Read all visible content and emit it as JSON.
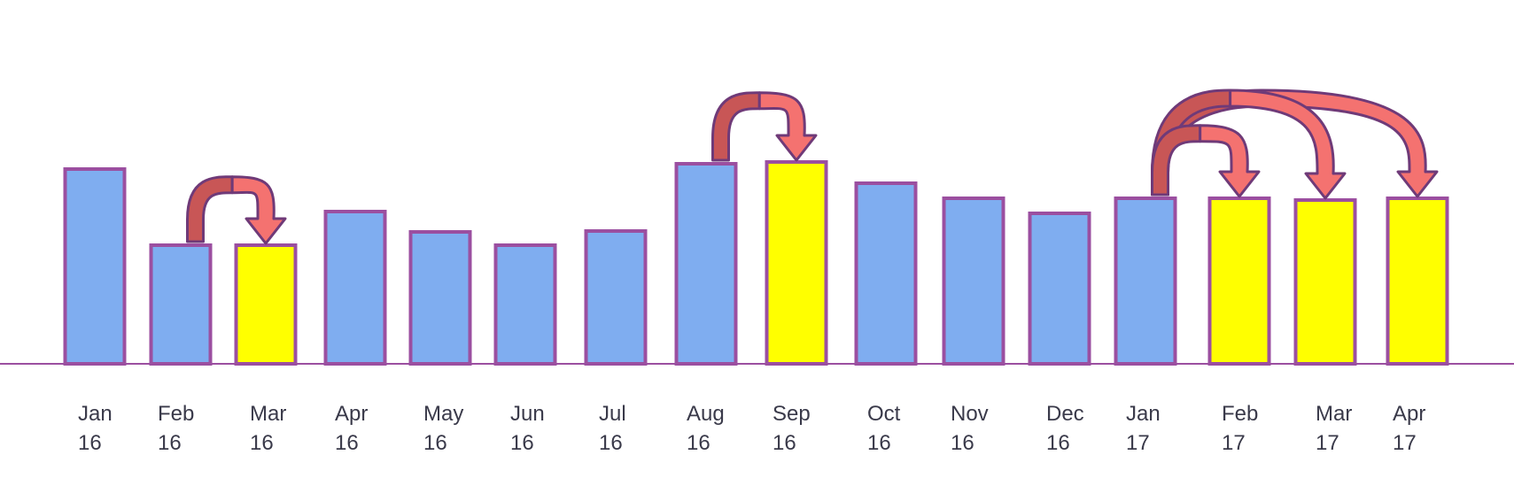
{
  "chart_data": {
    "type": "bar",
    "categories": [
      [
        "Jan",
        "16"
      ],
      [
        "Feb",
        "16"
      ],
      [
        "Mar",
        "16"
      ],
      [
        "Apr",
        "16"
      ],
      [
        "May",
        "16"
      ],
      [
        "Jun",
        "16"
      ],
      [
        "Jul",
        "16"
      ],
      [
        "Aug",
        "16"
      ],
      [
        "Sep",
        "16"
      ],
      [
        "Oct",
        "16"
      ],
      [
        "Nov",
        "16"
      ],
      [
        "Dec",
        "16"
      ],
      [
        "Jan",
        "17"
      ],
      [
        "Feb",
        "17"
      ],
      [
        "Mar",
        "17"
      ],
      [
        "Apr",
        "17"
      ]
    ],
    "values": [
      220,
      134,
      134,
      172,
      149,
      134,
      150,
      226,
      228,
      204,
      187,
      170,
      187,
      187,
      185,
      187
    ],
    "highlighted": [
      false,
      false,
      true,
      false,
      false,
      false,
      false,
      false,
      true,
      false,
      false,
      false,
      false,
      true,
      true,
      true
    ],
    "ylim": [
      0,
      350
    ],
    "grid": false,
    "title": "",
    "xlabel": "",
    "ylabel": "",
    "arrows": [
      {
        "from": 1,
        "to": 2
      },
      {
        "from": 7,
        "to": 8
      },
      {
        "from": 12,
        "to": 13
      },
      {
        "from": 12,
        "to": 14
      },
      {
        "from": 12,
        "to": 15
      }
    ],
    "colors": {
      "bar": "#7FADF0",
      "highlight": "#FFFF00",
      "bar_stroke": "#9B4FA0",
      "axis": "#9B4FA0",
      "arrow_front": "#F47270",
      "arrow_back": "#C85656",
      "arrow_stroke": "#6F3A78",
      "label": "#3a3a4a"
    }
  }
}
